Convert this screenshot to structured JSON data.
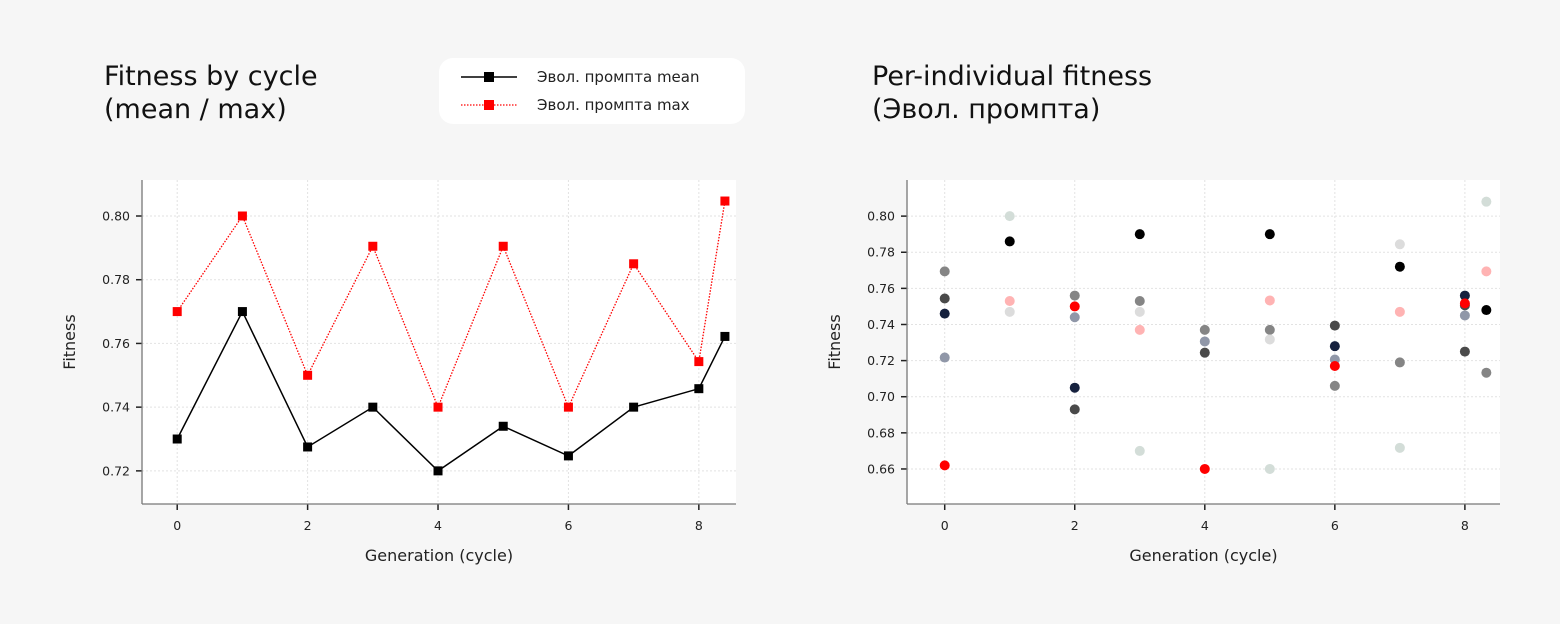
{
  "left_title": "Fitness by cycle\n(mean / max)",
  "right_title": "Per-individual fitness\n(Эвол. промпта)",
  "legend": [
    {
      "label": "Эвол. промпта mean",
      "color": "#000000",
      "style": "solid"
    },
    {
      "label": "Эвол. промпта max",
      "color": "#ff0000",
      "style": "dotted"
    }
  ],
  "chart_data": [
    {
      "type": "line",
      "title": "Fitness by cycle (mean / max)",
      "xlabel": "Generation (cycle)",
      "ylabel": "Fitness",
      "xlim": [
        -0.54,
        8.57
      ],
      "ylim": [
        0.7096,
        0.8113
      ],
      "xticks": [
        0,
        2,
        4,
        6,
        8
      ],
      "yticks": [
        0.72,
        0.74,
        0.76,
        0.78,
        0.8
      ],
      "ytick_labels": [
        "0.72",
        "0.74",
        "0.76",
        "0.78",
        "0.80"
      ],
      "grid": true,
      "legend_placement": "top",
      "x": [
        0,
        1,
        2,
        3,
        4,
        5,
        6,
        7,
        8,
        8.4
      ],
      "series": [
        {
          "name": "Эвол. промпта mean",
          "color": "#000000",
          "style": "solid",
          "marker": "square",
          "values": [
            0.73,
            0.77,
            0.7275,
            0.74,
            0.72,
            0.734,
            0.7247,
            0.74,
            0.7458,
            0.7622
          ]
        },
        {
          "name": "Эвол. промпта max",
          "color": "#ff0000",
          "style": "dotted",
          "marker": "square",
          "values": [
            0.77,
            0.8,
            0.75,
            0.7905,
            0.74,
            0.7905,
            0.74,
            0.785,
            0.7543,
            0.8047
          ]
        }
      ]
    },
    {
      "type": "scatter",
      "title": "Per-individual fitness (Эвол. промпта)",
      "xlabel": "Generation (cycle)",
      "ylabel": "Fitness",
      "xlim": [
        -0.58,
        8.54
      ],
      "ylim": [
        0.6406,
        0.82
      ],
      "xticks": [
        0,
        2,
        4,
        6,
        8
      ],
      "yticks": [
        0.66,
        0.68,
        0.7,
        0.72,
        0.74,
        0.76,
        0.78,
        0.8
      ],
      "ytick_labels": [
        "0.66",
        "0.68",
        "0.70",
        "0.72",
        "0.74",
        "0.76",
        "0.78",
        "0.80"
      ],
      "grid": true,
      "points": [
        {
          "x": 0,
          "y": 0.7694,
          "color": "#858585"
        },
        {
          "x": 0,
          "y": 0.7544,
          "color": "#4a4a4a"
        },
        {
          "x": 0,
          "y": 0.746,
          "color": "#16213e"
        },
        {
          "x": 0,
          "y": 0.7217,
          "color": "#9097a8"
        },
        {
          "x": 0,
          "y": 0.662,
          "color": "#ff0000"
        },
        {
          "x": 1,
          "y": 0.8,
          "color": "#d3ddd8"
        },
        {
          "x": 1,
          "y": 0.786,
          "color": "#000000"
        },
        {
          "x": 1,
          "y": 0.753,
          "color": "#ffb3b3"
        },
        {
          "x": 1,
          "y": 0.747,
          "color": "#dcdcdc"
        },
        {
          "x": 2,
          "y": 0.756,
          "color": "#858585"
        },
        {
          "x": 2,
          "y": 0.75,
          "color": "#ff0000"
        },
        {
          "x": 2,
          "y": 0.744,
          "color": "#9097a8"
        },
        {
          "x": 2,
          "y": 0.705,
          "color": "#16213e"
        },
        {
          "x": 2,
          "y": 0.693,
          "color": "#4a4a4a"
        },
        {
          "x": 3,
          "y": 0.79,
          "color": "#000000"
        },
        {
          "x": 3,
          "y": 0.753,
          "color": "#858585"
        },
        {
          "x": 3,
          "y": 0.747,
          "color": "#dcdcdc"
        },
        {
          "x": 3,
          "y": 0.737,
          "color": "#ffb3b3"
        },
        {
          "x": 3,
          "y": 0.67,
          "color": "#d3ddd8"
        },
        {
          "x": 4,
          "y": 0.737,
          "color": "#858585"
        },
        {
          "x": 4,
          "y": 0.7306,
          "color": "#9097a8"
        },
        {
          "x": 4,
          "y": 0.7244,
          "color": "#4a4a4a"
        },
        {
          "x": 4,
          "y": 0.66,
          "color": "#ff0000"
        },
        {
          "x": 5,
          "y": 0.79,
          "color": "#000000"
        },
        {
          "x": 5,
          "y": 0.7533,
          "color": "#ffb3b3"
        },
        {
          "x": 5,
          "y": 0.737,
          "color": "#858585"
        },
        {
          "x": 5,
          "y": 0.7317,
          "color": "#dcdcdc"
        },
        {
          "x": 5,
          "y": 0.66,
          "color": "#d3ddd8"
        },
        {
          "x": 6,
          "y": 0.7394,
          "color": "#4a4a4a"
        },
        {
          "x": 6,
          "y": 0.728,
          "color": "#16213e"
        },
        {
          "x": 6,
          "y": 0.7206,
          "color": "#9097a8"
        },
        {
          "x": 6,
          "y": 0.717,
          "color": "#ff0000"
        },
        {
          "x": 6,
          "y": 0.706,
          "color": "#858585"
        },
        {
          "x": 7,
          "y": 0.7844,
          "color": "#dcdcdc"
        },
        {
          "x": 7,
          "y": 0.772,
          "color": "#000000"
        },
        {
          "x": 7,
          "y": 0.747,
          "color": "#ffb3b3"
        },
        {
          "x": 7,
          "y": 0.719,
          "color": "#858585"
        },
        {
          "x": 7,
          "y": 0.6717,
          "color": "#d3ddd8"
        },
        {
          "x": 8,
          "y": 0.756,
          "color": "#16213e"
        },
        {
          "x": 8,
          "y": 0.7506,
          "color": "#4a4a4a"
        },
        {
          "x": 8,
          "y": 0.7517,
          "color": "#ff0000"
        },
        {
          "x": 8,
          "y": 0.745,
          "color": "#9097a8"
        },
        {
          "x": 8,
          "y": 0.725,
          "color": "#4a4a4a"
        },
        {
          "x": 8.33,
          "y": 0.808,
          "color": "#d3ddd8"
        },
        {
          "x": 8.33,
          "y": 0.7694,
          "color": "#ffb3b3"
        },
        {
          "x": 8.33,
          "y": 0.748,
          "color": "#000000"
        },
        {
          "x": 8.33,
          "y": 0.7133,
          "color": "#858585"
        }
      ]
    }
  ]
}
